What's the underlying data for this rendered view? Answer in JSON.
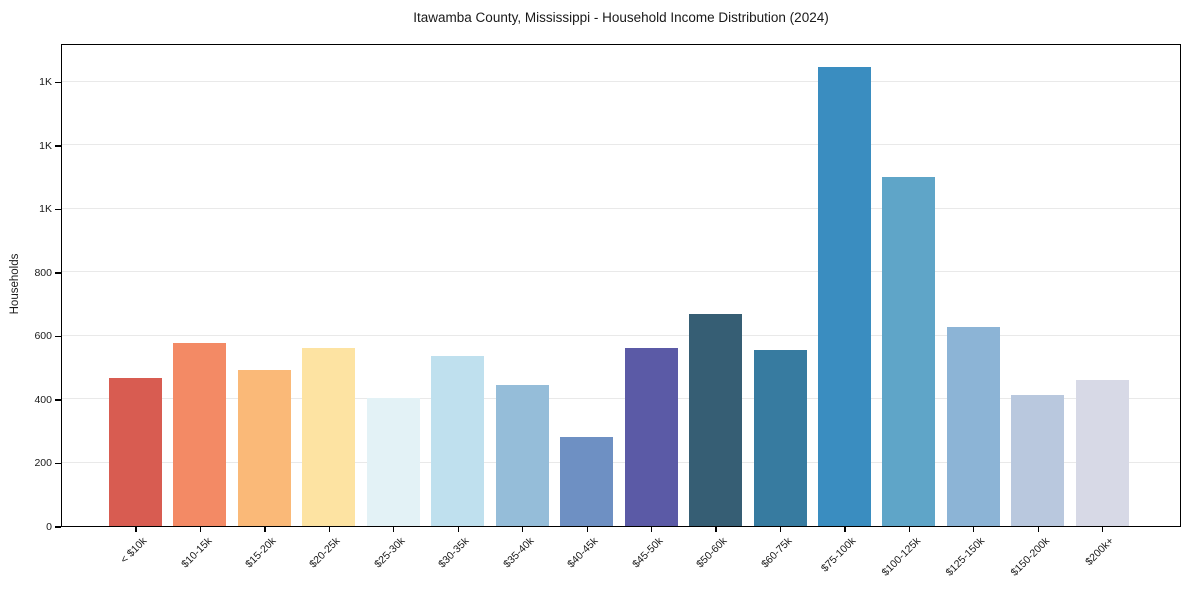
{
  "title": "Itawamba County, Mississippi - Household Income Distribution (2024)",
  "chart_data": {
    "type": "bar",
    "title": "Itawamba County, Mississippi - Household Income Distribution (2024)",
    "xlabel": "",
    "ylabel": "Households",
    "ylim": [
      0,
      1521
    ],
    "grid": true,
    "legend": false,
    "categories": [
      "< $10k",
      "$10-15k",
      "$15-20k",
      "$20-25k",
      "$25-30k",
      "$30-35k",
      "$35-40k",
      "$40-45k",
      "$45-50k",
      "$50-60k",
      "$60-75k",
      "$75-100k",
      "$100-125k",
      "$125-150k",
      "$150-200k",
      "$200k+"
    ],
    "values": [
      467,
      575,
      490,
      562,
      404,
      534,
      445,
      279,
      562,
      667,
      555,
      1447,
      1100,
      628,
      414,
      461
    ],
    "bar_colors": [
      "#d85c51",
      "#f38a65",
      "#fab978",
      "#fde3a2",
      "#e3f2f6",
      "#bfe0ee",
      "#95bdd9",
      "#6e90c3",
      "#5b5aa6",
      "#365e74",
      "#377ba0",
      "#3a8dc0",
      "#5fa5c8",
      "#8cb4d6",
      "#b9c8de",
      "#d7d9e6"
    ],
    "yticks": {
      "values": [
        0,
        200,
        400,
        600,
        800,
        1000,
        1200,
        1400
      ],
      "labels": [
        "0",
        "200",
        "400",
        "600",
        "800",
        "1K",
        "1K",
        "1K"
      ]
    },
    "axis_color": "#000000",
    "gridline_color": "#e9e9e9",
    "background_color": "#ffffff"
  }
}
